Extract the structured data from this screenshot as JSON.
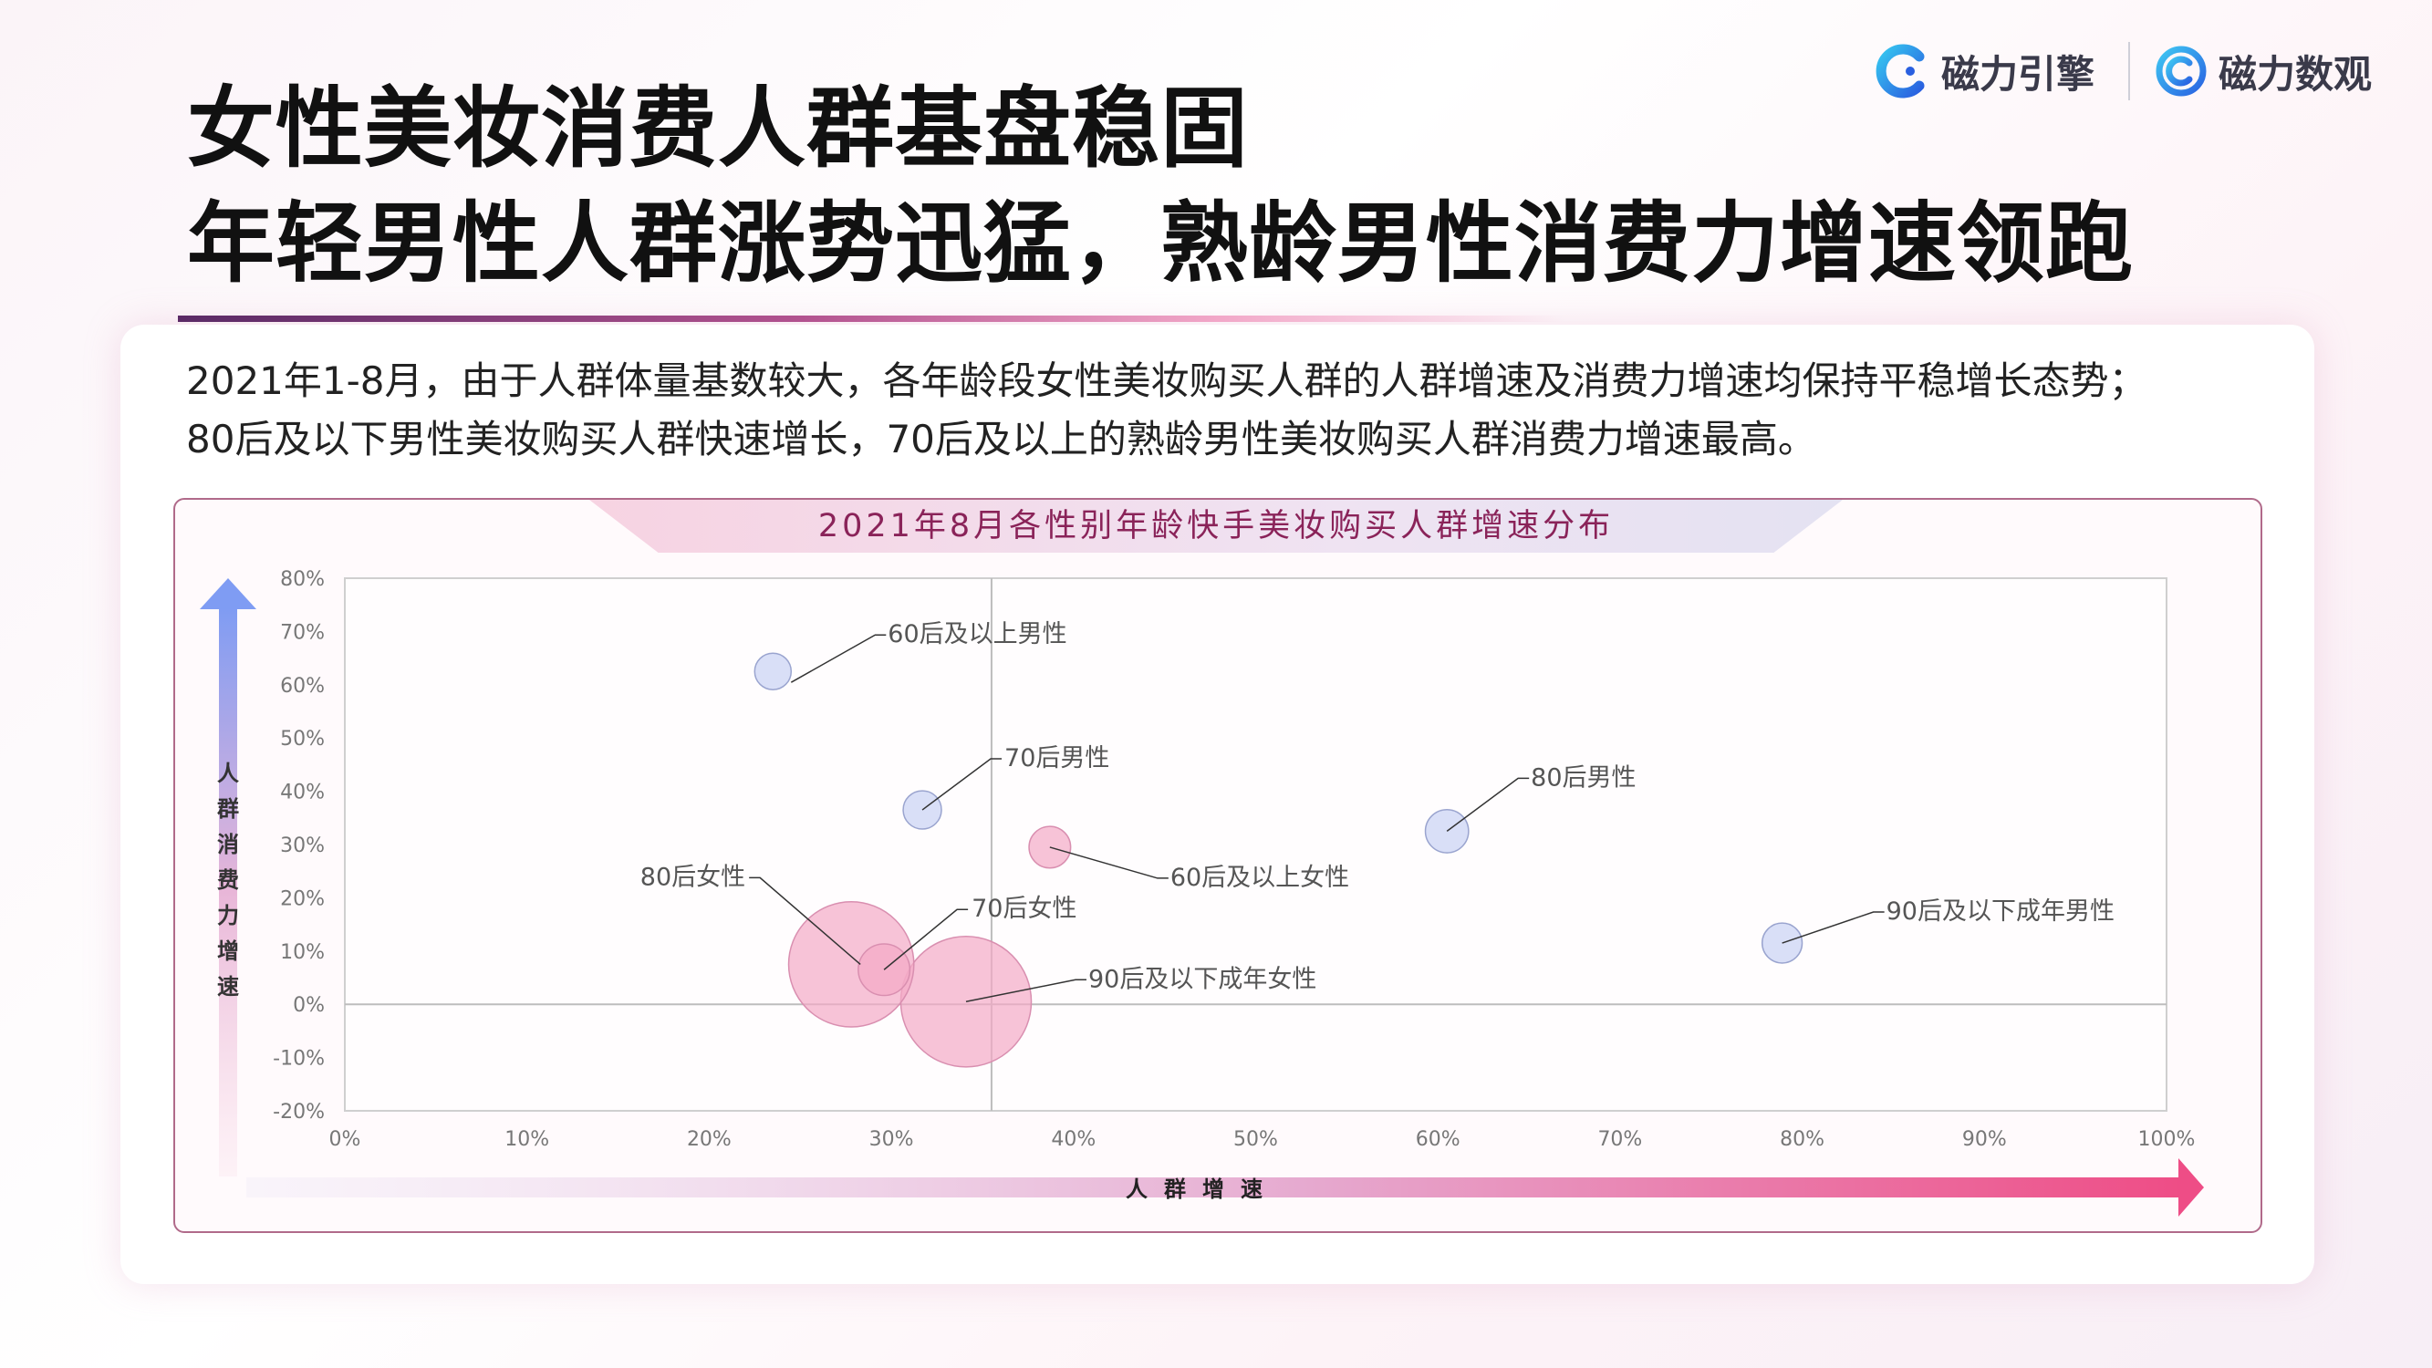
{
  "header": {
    "title_line1": "女性美妆消费人群基盘稳固",
    "title_line2": "年轻男性人群涨势迅猛，熟龄男性消费力增速领跑",
    "logo1_text": "磁力引擎",
    "logo2_text": "磁力数观"
  },
  "description": {
    "line1": "2021年1-8月，由于人群体量基数较大，各年龄段女性美妆购买人群的人群增速及消费力增速均保持平稳增长态势；",
    "line2": "80后及以下男性美妆购买人群快速增长，70后及以上的熟龄男性美妆购买人群消费力增速最高。"
  },
  "colors": {
    "female": "#f4a9c6",
    "male": "#c9d2f3",
    "axis_arrow_y": "#7f9cf3",
    "axis_arrow_x": "#ee4d86",
    "title": "#8a2359"
  },
  "chart_data": {
    "type": "bubble",
    "title": "2021年8月各性别年龄快手美妆购买人群增速分布",
    "xlabel": "人群增速",
    "ylabel": "人群消费力增速",
    "xlim": [
      0,
      100
    ],
    "ylim": [
      -20,
      80
    ],
    "x_ticks": [
      "0%",
      "10%",
      "20%",
      "30%",
      "40%",
      "50%",
      "60%",
      "70%",
      "80%",
      "90%",
      "100%"
    ],
    "y_ticks": [
      "80%",
      "70%",
      "60%",
      "50%",
      "40%",
      "30%",
      "20%",
      "10%",
      "0%",
      "-10%",
      "-20%"
    ],
    "reference_lines": {
      "x": 35.5,
      "y": 0
    },
    "points": [
      {
        "name": "60后及以上男性",
        "x": 23.5,
        "y": 62.5,
        "size": 1.0,
        "group": "male"
      },
      {
        "name": "70后男性",
        "x": 31.7,
        "y": 36.5,
        "size": 1.1,
        "group": "male"
      },
      {
        "name": "60后及以上女性",
        "x": 38.7,
        "y": 29.5,
        "size": 1.3,
        "group": "female"
      },
      {
        "name": "80后男性",
        "x": 60.5,
        "y": 32.5,
        "size": 1.4,
        "group": "male"
      },
      {
        "name": "90后及以下成年男性",
        "x": 78.9,
        "y": 11.5,
        "size": 1.2,
        "group": "male"
      },
      {
        "name": "80后女性",
        "x": 27.8,
        "y": 7.5,
        "size": 4.6,
        "group": "female"
      },
      {
        "name": "70后女性",
        "x": 29.6,
        "y": 6.5,
        "size": 2.0,
        "group": "female"
      },
      {
        "name": "90后及以下成年女性",
        "x": 34.1,
        "y": 0.5,
        "size": 5.0,
        "group": "female"
      }
    ]
  }
}
